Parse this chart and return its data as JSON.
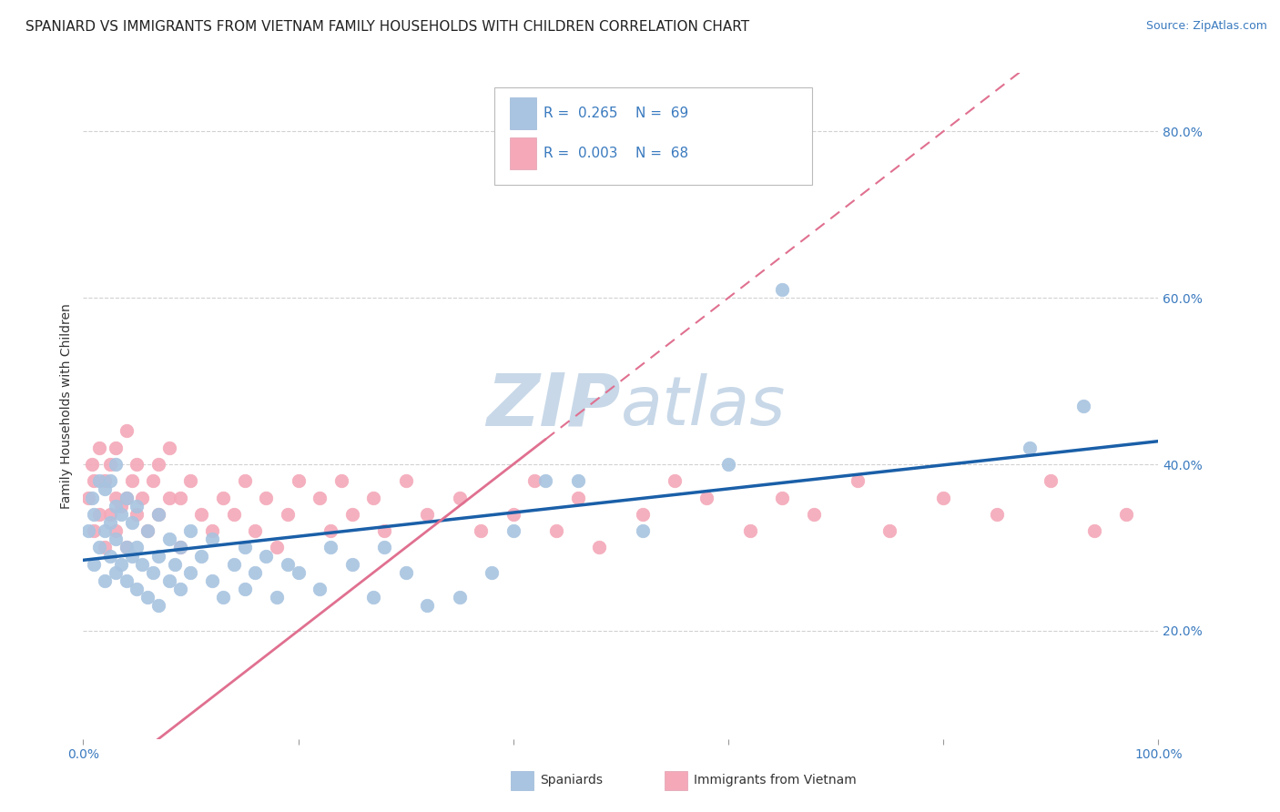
{
  "title": "SPANIARD VS IMMIGRANTS FROM VIETNAM FAMILY HOUSEHOLDS WITH CHILDREN CORRELATION CHART",
  "source": "Source: ZipAtlas.com",
  "ylabel": "Family Households with Children",
  "xlim": [
    0.0,
    1.0
  ],
  "ylim": [
    0.07,
    0.87
  ],
  "xticks": [
    0.0,
    0.2,
    0.4,
    0.6,
    0.8,
    1.0
  ],
  "xticklabels": [
    "0.0%",
    "",
    "",
    "",
    "",
    "100.0%"
  ],
  "yticks": [
    0.2,
    0.4,
    0.6,
    0.8
  ],
  "yticklabels": [
    "20.0%",
    "40.0%",
    "60.0%",
    "80.0%"
  ],
  "blue_color": "#a8c4e0",
  "pink_color": "#f4a8b8",
  "blue_line_color": "#1a5fa8",
  "pink_line_color": "#e07090",
  "blue_scatter_x": [
    0.005,
    0.008,
    0.01,
    0.01,
    0.015,
    0.015,
    0.02,
    0.02,
    0.02,
    0.025,
    0.025,
    0.025,
    0.03,
    0.03,
    0.03,
    0.03,
    0.035,
    0.035,
    0.04,
    0.04,
    0.04,
    0.045,
    0.045,
    0.05,
    0.05,
    0.05,
    0.055,
    0.06,
    0.06,
    0.065,
    0.07,
    0.07,
    0.07,
    0.08,
    0.08,
    0.085,
    0.09,
    0.09,
    0.1,
    0.1,
    0.11,
    0.12,
    0.12,
    0.13,
    0.14,
    0.15,
    0.15,
    0.16,
    0.17,
    0.18,
    0.19,
    0.2,
    0.22,
    0.23,
    0.25,
    0.27,
    0.28,
    0.3,
    0.32,
    0.35,
    0.38,
    0.4,
    0.43,
    0.46,
    0.52,
    0.6,
    0.65,
    0.88,
    0.93
  ],
  "blue_scatter_y": [
    0.32,
    0.36,
    0.28,
    0.34,
    0.3,
    0.38,
    0.26,
    0.32,
    0.37,
    0.29,
    0.33,
    0.38,
    0.27,
    0.31,
    0.35,
    0.4,
    0.28,
    0.34,
    0.26,
    0.3,
    0.36,
    0.29,
    0.33,
    0.25,
    0.3,
    0.35,
    0.28,
    0.24,
    0.32,
    0.27,
    0.23,
    0.29,
    0.34,
    0.26,
    0.31,
    0.28,
    0.25,
    0.3,
    0.27,
    0.32,
    0.29,
    0.26,
    0.31,
    0.24,
    0.28,
    0.25,
    0.3,
    0.27,
    0.29,
    0.24,
    0.28,
    0.27,
    0.25,
    0.3,
    0.28,
    0.24,
    0.3,
    0.27,
    0.23,
    0.24,
    0.27,
    0.32,
    0.38,
    0.38,
    0.32,
    0.4,
    0.61,
    0.42,
    0.47
  ],
  "pink_scatter_x": [
    0.005,
    0.008,
    0.01,
    0.01,
    0.015,
    0.015,
    0.02,
    0.02,
    0.025,
    0.025,
    0.03,
    0.03,
    0.03,
    0.035,
    0.04,
    0.04,
    0.04,
    0.045,
    0.05,
    0.05,
    0.055,
    0.06,
    0.065,
    0.07,
    0.07,
    0.08,
    0.08,
    0.09,
    0.09,
    0.1,
    0.11,
    0.12,
    0.13,
    0.14,
    0.15,
    0.16,
    0.17,
    0.18,
    0.19,
    0.2,
    0.22,
    0.23,
    0.24,
    0.25,
    0.27,
    0.28,
    0.3,
    0.32,
    0.35,
    0.37,
    0.4,
    0.42,
    0.44,
    0.46,
    0.48,
    0.52,
    0.55,
    0.58,
    0.62,
    0.65,
    0.68,
    0.72,
    0.75,
    0.8,
    0.85,
    0.9,
    0.94,
    0.97
  ],
  "pink_scatter_y": [
    0.36,
    0.4,
    0.32,
    0.38,
    0.34,
    0.42,
    0.3,
    0.38,
    0.34,
    0.4,
    0.32,
    0.36,
    0.42,
    0.35,
    0.3,
    0.36,
    0.44,
    0.38,
    0.34,
    0.4,
    0.36,
    0.32,
    0.38,
    0.34,
    0.4,
    0.36,
    0.42,
    0.3,
    0.36,
    0.38,
    0.34,
    0.32,
    0.36,
    0.34,
    0.38,
    0.32,
    0.36,
    0.3,
    0.34,
    0.38,
    0.36,
    0.32,
    0.38,
    0.34,
    0.36,
    0.32,
    0.38,
    0.34,
    0.36,
    0.32,
    0.34,
    0.38,
    0.32,
    0.36,
    0.3,
    0.34,
    0.38,
    0.36,
    0.32,
    0.36,
    0.34,
    0.38,
    0.32,
    0.36,
    0.34,
    0.38,
    0.32,
    0.34
  ],
  "background_color": "#ffffff",
  "grid_color": "#cccccc",
  "title_fontsize": 11,
  "tick_fontsize": 10,
  "watermark_zip_color": "#c8d8e8",
  "watermark_atlas_color": "#c8d8e8",
  "watermark_fontsize": 58
}
